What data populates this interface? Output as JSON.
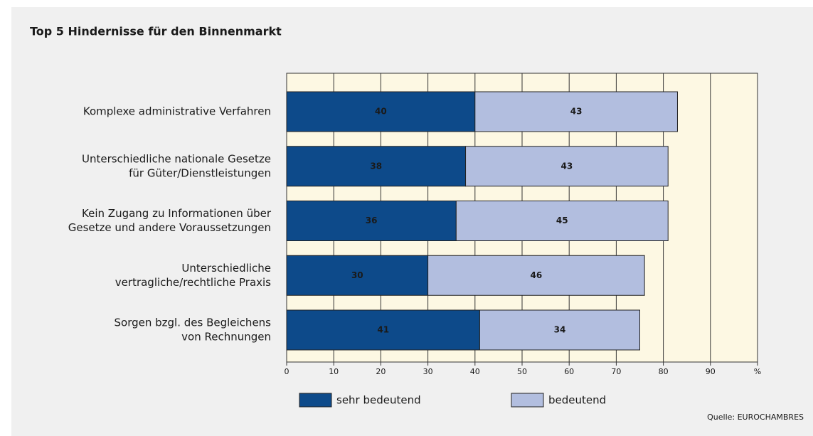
{
  "chart_data": {
    "type": "stacked-bar-horizontal",
    "title": "Top 5 Hindernisse für den Binnenmarkt",
    "categories": [
      [
        "Komplexe administrative Verfahren"
      ],
      [
        "Unterschiedliche nationale Gesetze",
        "für Güter/Dienstleistungen"
      ],
      [
        "Kein Zugang zu Informationen über",
        "Gesetze und andere Voraussetzungen"
      ],
      [
        "Unterschiedliche",
        "vertragliche/rechtliche Praxis"
      ],
      [
        "Sorgen bzgl. des Begleichens",
        "von Rechnungen"
      ]
    ],
    "series": [
      {
        "name": "sehr bedeutend",
        "color": "#0d4a8a",
        "values": [
          40,
          38,
          36,
          30,
          41
        ]
      },
      {
        "name": "bedeutend",
        "color": "#b2bedf",
        "values": [
          43,
          43,
          45,
          46,
          34
        ]
      }
    ],
    "xlim": [
      0,
      100
    ],
    "xticks": [
      0,
      10,
      20,
      30,
      40,
      50,
      60,
      70,
      80,
      90,
      {
        "value": 100,
        "label": "%"
      }
    ],
    "grid": true,
    "source": "Quelle: EUROCHAMBRES"
  }
}
